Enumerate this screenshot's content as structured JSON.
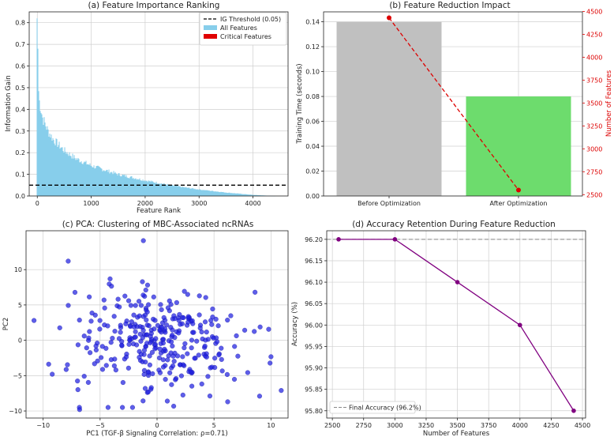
{
  "chart_data": [
    {
      "id": "a",
      "type": "bar",
      "title": "(a) Feature Importance Ranking",
      "xlabel": "Feature Rank",
      "ylabel": "Information Gain",
      "xlim": [
        -150,
        4650
      ],
      "ylim": [
        0,
        0.85
      ],
      "xticks": [
        0,
        1000,
        2000,
        3000,
        4000
      ],
      "yticks": [
        0.0,
        0.1,
        0.2,
        0.3,
        0.4,
        0.5,
        0.6,
        0.7,
        0.8
      ],
      "ytick_labels": [
        "0.0",
        "0.1",
        "0.2",
        "0.3",
        "0.4",
        "0.5",
        "0.6",
        "0.7",
        "0.8"
      ],
      "n_features": 4400,
      "curve_points": [
        [
          0,
          0.82
        ],
        [
          1,
          0.68
        ],
        [
          30,
          0.45
        ],
        [
          100,
          0.36
        ],
        [
          200,
          0.3
        ],
        [
          300,
          0.26
        ],
        [
          500,
          0.21
        ],
        [
          700,
          0.175
        ],
        [
          1000,
          0.14
        ],
        [
          1500,
          0.1
        ],
        [
          2000,
          0.072
        ],
        [
          2500,
          0.048
        ],
        [
          3000,
          0.03
        ],
        [
          3500,
          0.016
        ],
        [
          4000,
          0.005
        ],
        [
          4400,
          0.0
        ]
      ],
      "threshold": 0.05,
      "legend": [
        {
          "label": "IG Threshold (0.05)",
          "color": "#000000",
          "style": "dashed"
        },
        {
          "label": "All Features",
          "color": "#87ceeb",
          "style": "bar"
        },
        {
          "label": "Critical Features",
          "color": "#e00000",
          "style": "bar"
        }
      ],
      "colors": {
        "bars": "#87ceeb",
        "threshold": "#000000"
      }
    },
    {
      "id": "b",
      "type": "bar",
      "title": "(b) Feature Reduction Impact",
      "categories": [
        "Before Optimization",
        "After Optimization"
      ],
      "values": [
        0.14,
        0.08
      ],
      "bar_colors": [
        "#c0c0c0",
        "#6ddc6d"
      ],
      "ylabel": "Training Time (seconds)",
      "ylim": [
        0,
        0.148
      ],
      "yticks": [
        0.0,
        0.02,
        0.04,
        0.06,
        0.08,
        0.1,
        0.12,
        0.14
      ],
      "ytick_labels": [
        "0.00",
        "0.02",
        "0.04",
        "0.06",
        "0.08",
        "0.10",
        "0.12",
        "0.14"
      ],
      "secondary": {
        "ylabel": "Number of Features",
        "values": [
          4430,
          2550
        ],
        "ylim": [
          2485,
          4495
        ],
        "yticks": [
          2500,
          2750,
          3000,
          3250,
          3500,
          3750,
          4000,
          4250,
          4500
        ],
        "ytick_labels": [
          "2500",
          "2750",
          "3000",
          "3250",
          "3500",
          "3750",
          "4000",
          "4250",
          "4500"
        ],
        "color": "#dd0000",
        "style": "dashed-marker"
      }
    },
    {
      "id": "c",
      "type": "scatter",
      "title": "(c) PCA: Clustering of MBC-Associated ncRNAs",
      "xlabel": "PC1 (TGF-β Signaling Correlation: ρ=0.71)",
      "ylabel": "PC2",
      "xlim": [
        -11.5,
        11.5
      ],
      "ylim": [
        -11,
        15.5
      ],
      "xticks": [
        -10,
        -5,
        0,
        5,
        10
      ],
      "yticks": [
        -10,
        -5,
        0,
        5,
        10
      ],
      "ytick_labels": [
        "−10",
        "−5",
        "0",
        "5",
        "10"
      ],
      "xtick_labels": [
        "−10",
        "−5",
        "0",
        "5",
        "10"
      ],
      "color": "#2020e0",
      "n_points": 330,
      "points_outliers": [
        [
          -1.2,
          14.1
        ],
        [
          -7.8,
          11.2
        ],
        [
          -10.8,
          2.8
        ],
        [
          10.9,
          -7.1
        ],
        [
          -6.8,
          -9.8
        ],
        [
          9.0,
          -7.9
        ],
        [
          8.6,
          6.8
        ],
        [
          -9.2,
          -4.8
        ],
        [
          0.9,
          -8.6
        ],
        [
          6.2,
          -8.7
        ]
      ],
      "cluster_spread": [
        3.6,
        3.7
      ]
    },
    {
      "id": "d",
      "type": "line",
      "title": "(d) Accuracy Retention During Feature Reduction",
      "xlabel": "Number of Features",
      "ylabel": "Accuracy (%)",
      "x": [
        2550,
        3000,
        3500,
        4000,
        4430
      ],
      "y": [
        96.2,
        96.2,
        96.1,
        96.0,
        95.8
      ],
      "xlim": [
        2455,
        4525
      ],
      "ylim": [
        95.783,
        96.22
      ],
      "xticks": [
        2500,
        2750,
        3000,
        3250,
        3500,
        3750,
        4000,
        4250,
        4500
      ],
      "xtick_labels": [
        "2500",
        "2750",
        "3000",
        "3250",
        "3500",
        "3750",
        "4000",
        "4250",
        "4500"
      ],
      "yticks": [
        95.8,
        95.85,
        95.9,
        95.95,
        96.0,
        96.05,
        96.1,
        96.15,
        96.2
      ],
      "ytick_labels": [
        "95.80",
        "95.85",
        "95.90",
        "95.95",
        "96.00",
        "96.05",
        "96.10",
        "96.15",
        "96.20"
      ],
      "reference_line": {
        "label": "Final Accuracy (96.2%)",
        "value": 96.2,
        "color": "#888888"
      },
      "color": "#800080"
    }
  ]
}
